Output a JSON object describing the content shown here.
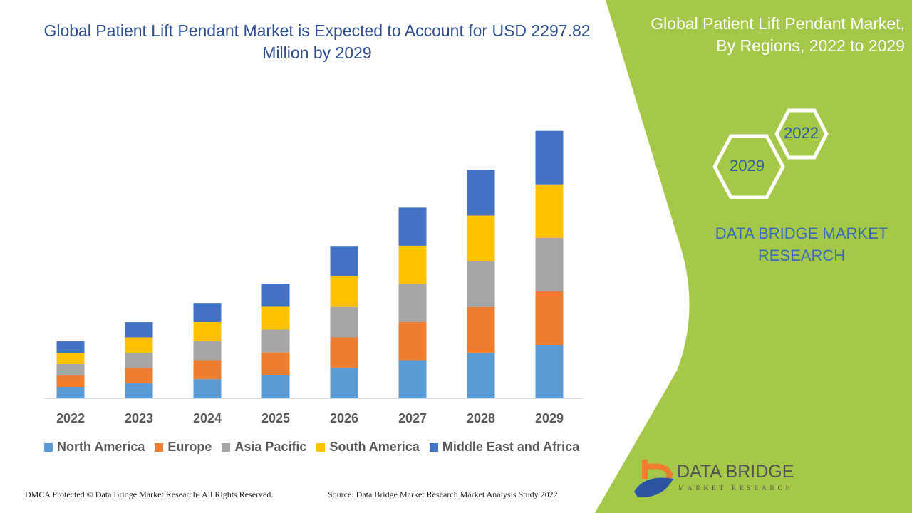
{
  "header": {
    "title": "Global Patient Lift Pendant Market is Expected to Account for USD 2297.82 Million by 2029",
    "side_title": "Global Patient Lift Pendant Market, By Regions, 2022 to 2029"
  },
  "badges": {
    "start_year": "2022",
    "end_year": "2029"
  },
  "brand": {
    "name": "DATA BRIDGE MARKET RESEARCH",
    "logo_text": "DATA BRIDGE",
    "logo_sub": "MARKET RESEARCH"
  },
  "footer": {
    "copyright": "DMCA Protected © Data Bridge Market Research- All Rights Reserved.",
    "source": "Source: Data Bridge Market Research Market Analysis Study 2022"
  },
  "colors": {
    "accent_green": "#a5c84a",
    "title_blue": "#2f4f8f"
  },
  "chart_data": {
    "type": "bar",
    "stacked": true,
    "title": "Global Patient Lift Pendant Market is Expected to Account for USD 2297.82 Million by 2029",
    "xlabel": "",
    "ylabel": "",
    "grid": false,
    "legend_position": "bottom",
    "categories": [
      "2022",
      "2023",
      "2024",
      "2025",
      "2026",
      "2027",
      "2028",
      "2029"
    ],
    "series": [
      {
        "name": "North America",
        "color": "#5b9bd5",
        "values": [
          98,
          131,
          164,
          197,
          262,
          328,
          393,
          460
        ]
      },
      {
        "name": "Europe",
        "color": "#ed7d31",
        "values": [
          98,
          131,
          164,
          197,
          262,
          328,
          393,
          460
        ]
      },
      {
        "name": "Asia Pacific",
        "color": "#a5a5a5",
        "values": [
          98,
          131,
          164,
          197,
          262,
          328,
          393,
          460
        ]
      },
      {
        "name": "South America",
        "color": "#ffc000",
        "values": [
          98,
          131,
          164,
          197,
          262,
          328,
          393,
          460
        ]
      },
      {
        "name": "Middle East and Africa",
        "color": "#4472c4",
        "values": [
          98,
          131,
          164,
          197,
          262,
          328,
          393,
          460
        ]
      }
    ],
    "ylim": [
      0,
      2400
    ]
  }
}
